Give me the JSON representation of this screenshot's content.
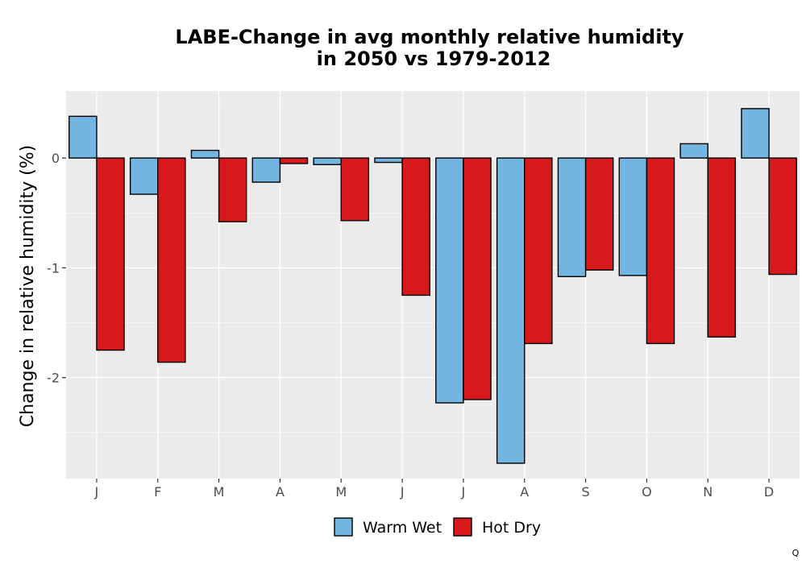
{
  "chart_data": {
    "type": "bar",
    "title_line1": "LABE-Change in avg monthly relative humidity",
    "title_line2": "in 2050 vs 1979-2012",
    "xlabel": "",
    "ylabel": "Change in relative humidity (%)",
    "categories": [
      "J",
      "F",
      "M",
      "A",
      "M",
      "J",
      "J",
      "A",
      "S",
      "O",
      "N",
      "D"
    ],
    "series": [
      {
        "name": "Warm Wet",
        "color": "#74b6e2",
        "values": [
          0.38,
          -0.33,
          0.07,
          -0.22,
          -0.06,
          -0.04,
          -2.23,
          -2.78,
          -1.08,
          -1.07,
          0.13,
          0.45
        ]
      },
      {
        "name": "Hot Dry",
        "color": "#d7191c",
        "values": [
          -1.75,
          -1.86,
          -0.58,
          -0.05,
          -0.57,
          -1.25,
          -2.2,
          -1.69,
          -1.02,
          -1.69,
          -1.63,
          -1.06
        ]
      }
    ],
    "ylim": [
      -2.92,
      0.61
    ],
    "yticks": [
      0,
      -1,
      -2
    ],
    "ytick_labels": [
      "0",
      "-1",
      "-2"
    ],
    "grid": true,
    "legend_position": "bottom"
  },
  "corner_mark": "Q"
}
